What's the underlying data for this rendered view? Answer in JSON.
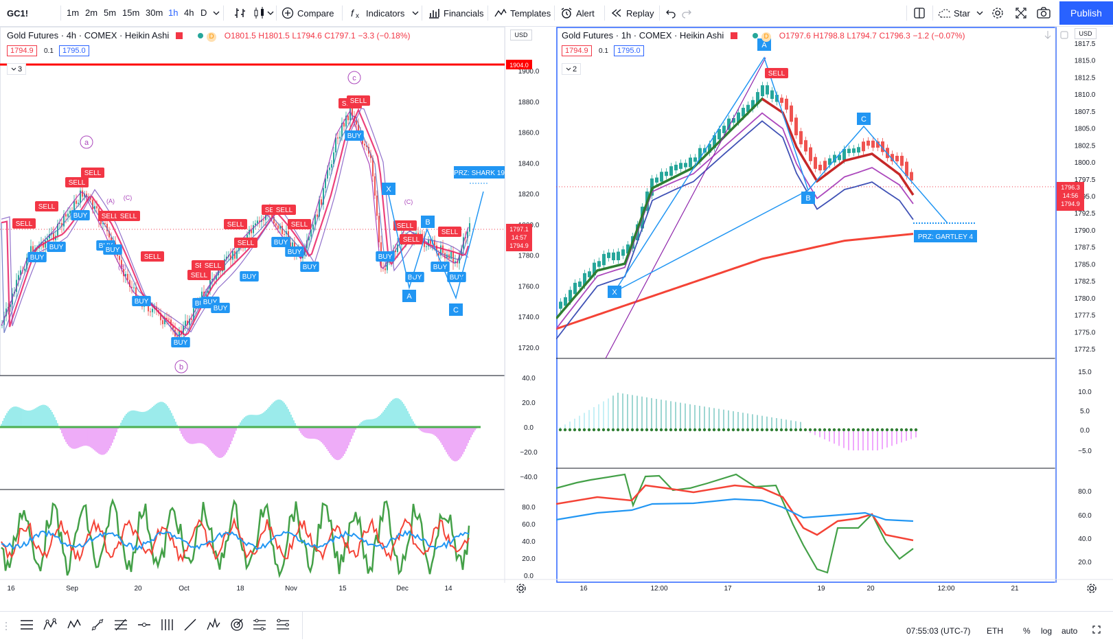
{
  "toolbar": {
    "symbol": "GC1!",
    "intervals": [
      "1m",
      "2m",
      "5m",
      "15m",
      "30m",
      "1h",
      "4h",
      "D"
    ],
    "active_interval": "1h",
    "compare": "Compare",
    "indicators": "Indicators",
    "financials": "Financials",
    "templates": "Templates",
    "alert": "Alert",
    "replay": "Replay",
    "star": "Star",
    "publish": "Publish"
  },
  "left_chart": {
    "title": "Gold Futures · 4h · COMEX · Heikin Ashi",
    "ohlc": {
      "o": "O1801.5",
      "h": "H1801.5",
      "l": "L1794.6",
      "c": "C1797.1",
      "chg": "−3.3 (−0.18%)"
    },
    "bid": "1794.9",
    "step": "0.1",
    "ask": "1795.0",
    "collapse_count": "3",
    "currency": "USD",
    "price_ticks": [
      "1900.0",
      "1880.0",
      "1860.0",
      "1840.0",
      "1820.0",
      "1800.0",
      "1780.0",
      "1760.0",
      "1740.0",
      "1720.0"
    ],
    "resistance_label": "1904.0",
    "last_price": [
      "1797.1",
      "14:57",
      "1794.9"
    ],
    "osc1_ticks": [
      "40.0",
      "20.0",
      "0.0",
      "−20.0",
      "−40.0"
    ],
    "osc2_ticks": [
      "80.0",
      "60.0",
      "40.0",
      "20.0",
      "0.0"
    ],
    "time_ticks": [
      "16",
      "Sep",
      "20",
      "Oct",
      "18",
      "Nov",
      "15",
      "Dec",
      "14"
    ],
    "prz_label": "PRZ: SHARK 19",
    "wave_labels": [
      "a",
      "b",
      "c"
    ],
    "sub_wave_labels": [
      "(A)",
      "(B)",
      "(C)",
      "(C)"
    ],
    "pattern_points": [
      "X",
      "A",
      "B",
      "C"
    ]
  },
  "right_chart": {
    "title": "Gold Futures · 1h · COMEX · Heikin Ashi",
    "ohlc": {
      "o": "O1797.6",
      "h": "H1798.8",
      "l": "L1794.7",
      "c": "C1796.3",
      "chg": "−1.2 (−0.07%)"
    },
    "bid": "1794.9",
    "step": "0.1",
    "ask": "1795.0",
    "collapse_count": "2",
    "currency": "USD",
    "price_ticks": [
      "1817.5",
      "1815.0",
      "1812.5",
      "1810.0",
      "1807.5",
      "1805.0",
      "1802.5",
      "1800.0",
      "1797.5",
      "1795.0",
      "1792.5",
      "1790.0",
      "1787.5",
      "1785.0",
      "1782.5",
      "1780.0",
      "1777.5",
      "1775.0",
      "1772.5"
    ],
    "last_price": [
      "1796.3",
      "14:56",
      "1794.9"
    ],
    "osc1_ticks": [
      "15.0",
      "10.0",
      "5.0",
      "0.0",
      "−5.0"
    ],
    "osc2_ticks": [
      "80.0",
      "60.0",
      "40.0",
      "20.0"
    ],
    "time_ticks": [
      "16",
      "12:00",
      "17",
      "19",
      "20",
      "12:00",
      "21"
    ],
    "prz_label": "PRZ: GARTLEY 4",
    "pattern_points": [
      "X",
      "A",
      "B",
      "C"
    ]
  },
  "signals": {
    "sell": "SELL",
    "buy": "BUY"
  },
  "status": {
    "time": "07:55:03 (UTC-7)",
    "session": "ETH",
    "percent": "%",
    "log": "log",
    "auto": "auto"
  },
  "colors": {
    "accent": "#2962ff",
    "sell": "#f23645",
    "buy": "#2196f3",
    "up": "#26a69a",
    "down": "#ef5350",
    "resistance": "#ff0000"
  }
}
